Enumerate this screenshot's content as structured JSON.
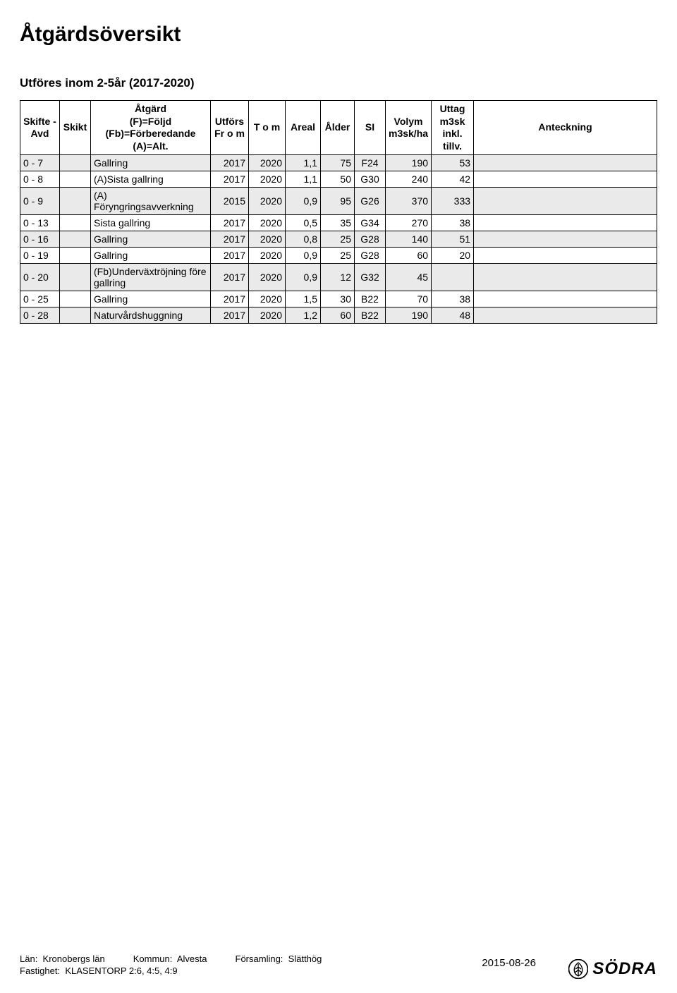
{
  "page_title": "Åtgärdsöversikt",
  "subtitle": "Utföres inom 2-5år (2017-2020)",
  "headers": {
    "skifte": "Skifte - Avd",
    "skikt": "Skikt",
    "atgard": "Åtgärd\n(F)=Följd\n(Fb)=Förberedande\n(A)=Alt.",
    "from": "Utförs Fr o m",
    "tom": "T o m",
    "areal": "Areal",
    "alder": "Ålder",
    "si": "SI",
    "volym": "Volym m3sk/ha",
    "uttag": "Uttag m3sk inkl. tillv.",
    "anteckning": "Anteckning"
  },
  "rows": [
    {
      "shade": true,
      "skifte": "0 - 7",
      "skikt": "",
      "atgard": "Gallring",
      "from": "2017",
      "tom": "2020",
      "areal": "1,1",
      "alder": "75",
      "si": "F24",
      "volym": "190",
      "uttag": "53",
      "ant": ""
    },
    {
      "shade": false,
      "skifte": "0 - 8",
      "skikt": "",
      "atgard": "(A)Sista gallring",
      "from": "2017",
      "tom": "2020",
      "areal": "1,1",
      "alder": "50",
      "si": "G30",
      "volym": "240",
      "uttag": "42",
      "ant": ""
    },
    {
      "shade": true,
      "skifte": "0 - 9",
      "skikt": "",
      "atgard": "(A) Föryngringsavverkning",
      "from": "2015",
      "tom": "2020",
      "areal": "0,9",
      "alder": "95",
      "si": "G26",
      "volym": "370",
      "uttag": "333",
      "ant": ""
    },
    {
      "shade": false,
      "skifte": "0 - 13",
      "skikt": "",
      "atgard": "Sista gallring",
      "from": "2017",
      "tom": "2020",
      "areal": "0,5",
      "alder": "35",
      "si": "G34",
      "volym": "270",
      "uttag": "38",
      "ant": ""
    },
    {
      "shade": true,
      "skifte": "0 - 16",
      "skikt": "",
      "atgard": "Gallring",
      "from": "2017",
      "tom": "2020",
      "areal": "0,8",
      "alder": "25",
      "si": "G28",
      "volym": "140",
      "uttag": "51",
      "ant": ""
    },
    {
      "shade": false,
      "skifte": "0 - 19",
      "skikt": "",
      "atgard": "Gallring",
      "from": "2017",
      "tom": "2020",
      "areal": "0,9",
      "alder": "25",
      "si": "G28",
      "volym": "60",
      "uttag": "20",
      "ant": ""
    },
    {
      "shade": true,
      "skifte": "0 - 20",
      "skikt": "",
      "atgard": "(Fb)Underväxtröjning före gallring",
      "from": "2017",
      "tom": "2020",
      "areal": "0,9",
      "alder": "12",
      "si": "G32",
      "volym": "45",
      "uttag": "",
      "ant": ""
    },
    {
      "shade": false,
      "skifte": "0 - 25",
      "skikt": "",
      "atgard": "Gallring",
      "from": "2017",
      "tom": "2020",
      "areal": "1,5",
      "alder": "30",
      "si": "B22",
      "volym": "70",
      "uttag": "38",
      "ant": ""
    },
    {
      "shade": true,
      "skifte": "0 - 28",
      "skikt": "",
      "atgard": "Naturvårdshuggning",
      "from": "2017",
      "tom": "2020",
      "areal": "1,2",
      "alder": "60",
      "si": "B22",
      "volym": "190",
      "uttag": "48",
      "ant": ""
    }
  ],
  "footer": {
    "lan_label": "Län:",
    "lan": "Kronobergs län",
    "kommun_label": "Kommun:",
    "kommun": "Alvesta",
    "forsamling_label": "Församling:",
    "forsamling": "Slätthög",
    "fastighet_label": "Fastighet:",
    "fastighet": "KLASENTORP 2:6, 4:5, 4:9",
    "date": "2015-08-26",
    "brand": "SÖDRA"
  }
}
